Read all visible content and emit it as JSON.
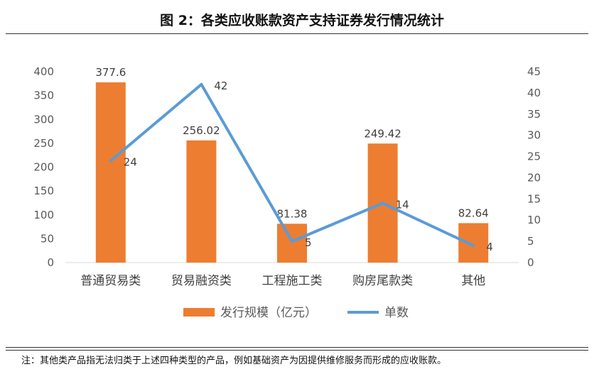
{
  "header": {
    "title": "图 2：各类应收账款资产支持证券发行情况统计"
  },
  "footnote": "注：其他类产品指无法归类于上述四种类型的产品，例如基础资产为因提供维修服务而形成的应收账款。",
  "chart_data": {
    "type": "bar",
    "categories": [
      "普通贸易类",
      "贸易融资类",
      "工程施工类",
      "购房尾款类",
      "其他"
    ],
    "series": [
      {
        "name": "发行规模（亿元）",
        "type": "bar",
        "axis": "left",
        "color": "#ED7D31",
        "values": [
          377.6,
          256.02,
          81.38,
          249.42,
          82.64
        ],
        "labels": [
          "377.6",
          "256.02",
          "81.38",
          "249.42",
          "82.64"
        ]
      },
      {
        "name": "单数",
        "type": "line",
        "axis": "right",
        "color": "#5B9BD5",
        "values": [
          24,
          42,
          5,
          14,
          4
        ],
        "labels": [
          "24",
          "42",
          "5",
          "14",
          "4"
        ]
      }
    ],
    "y_left": {
      "min": 0,
      "max": 400,
      "step": 50,
      "ticks": [
        "0",
        "50",
        "100",
        "150",
        "200",
        "250",
        "300",
        "350",
        "400"
      ]
    },
    "y_right": {
      "min": 0,
      "max": 45,
      "step": 5,
      "ticks": [
        "0",
        "5",
        "10",
        "15",
        "20",
        "25",
        "30",
        "35",
        "40",
        "45"
      ]
    },
    "grid": false,
    "legend_position": "bottom"
  }
}
